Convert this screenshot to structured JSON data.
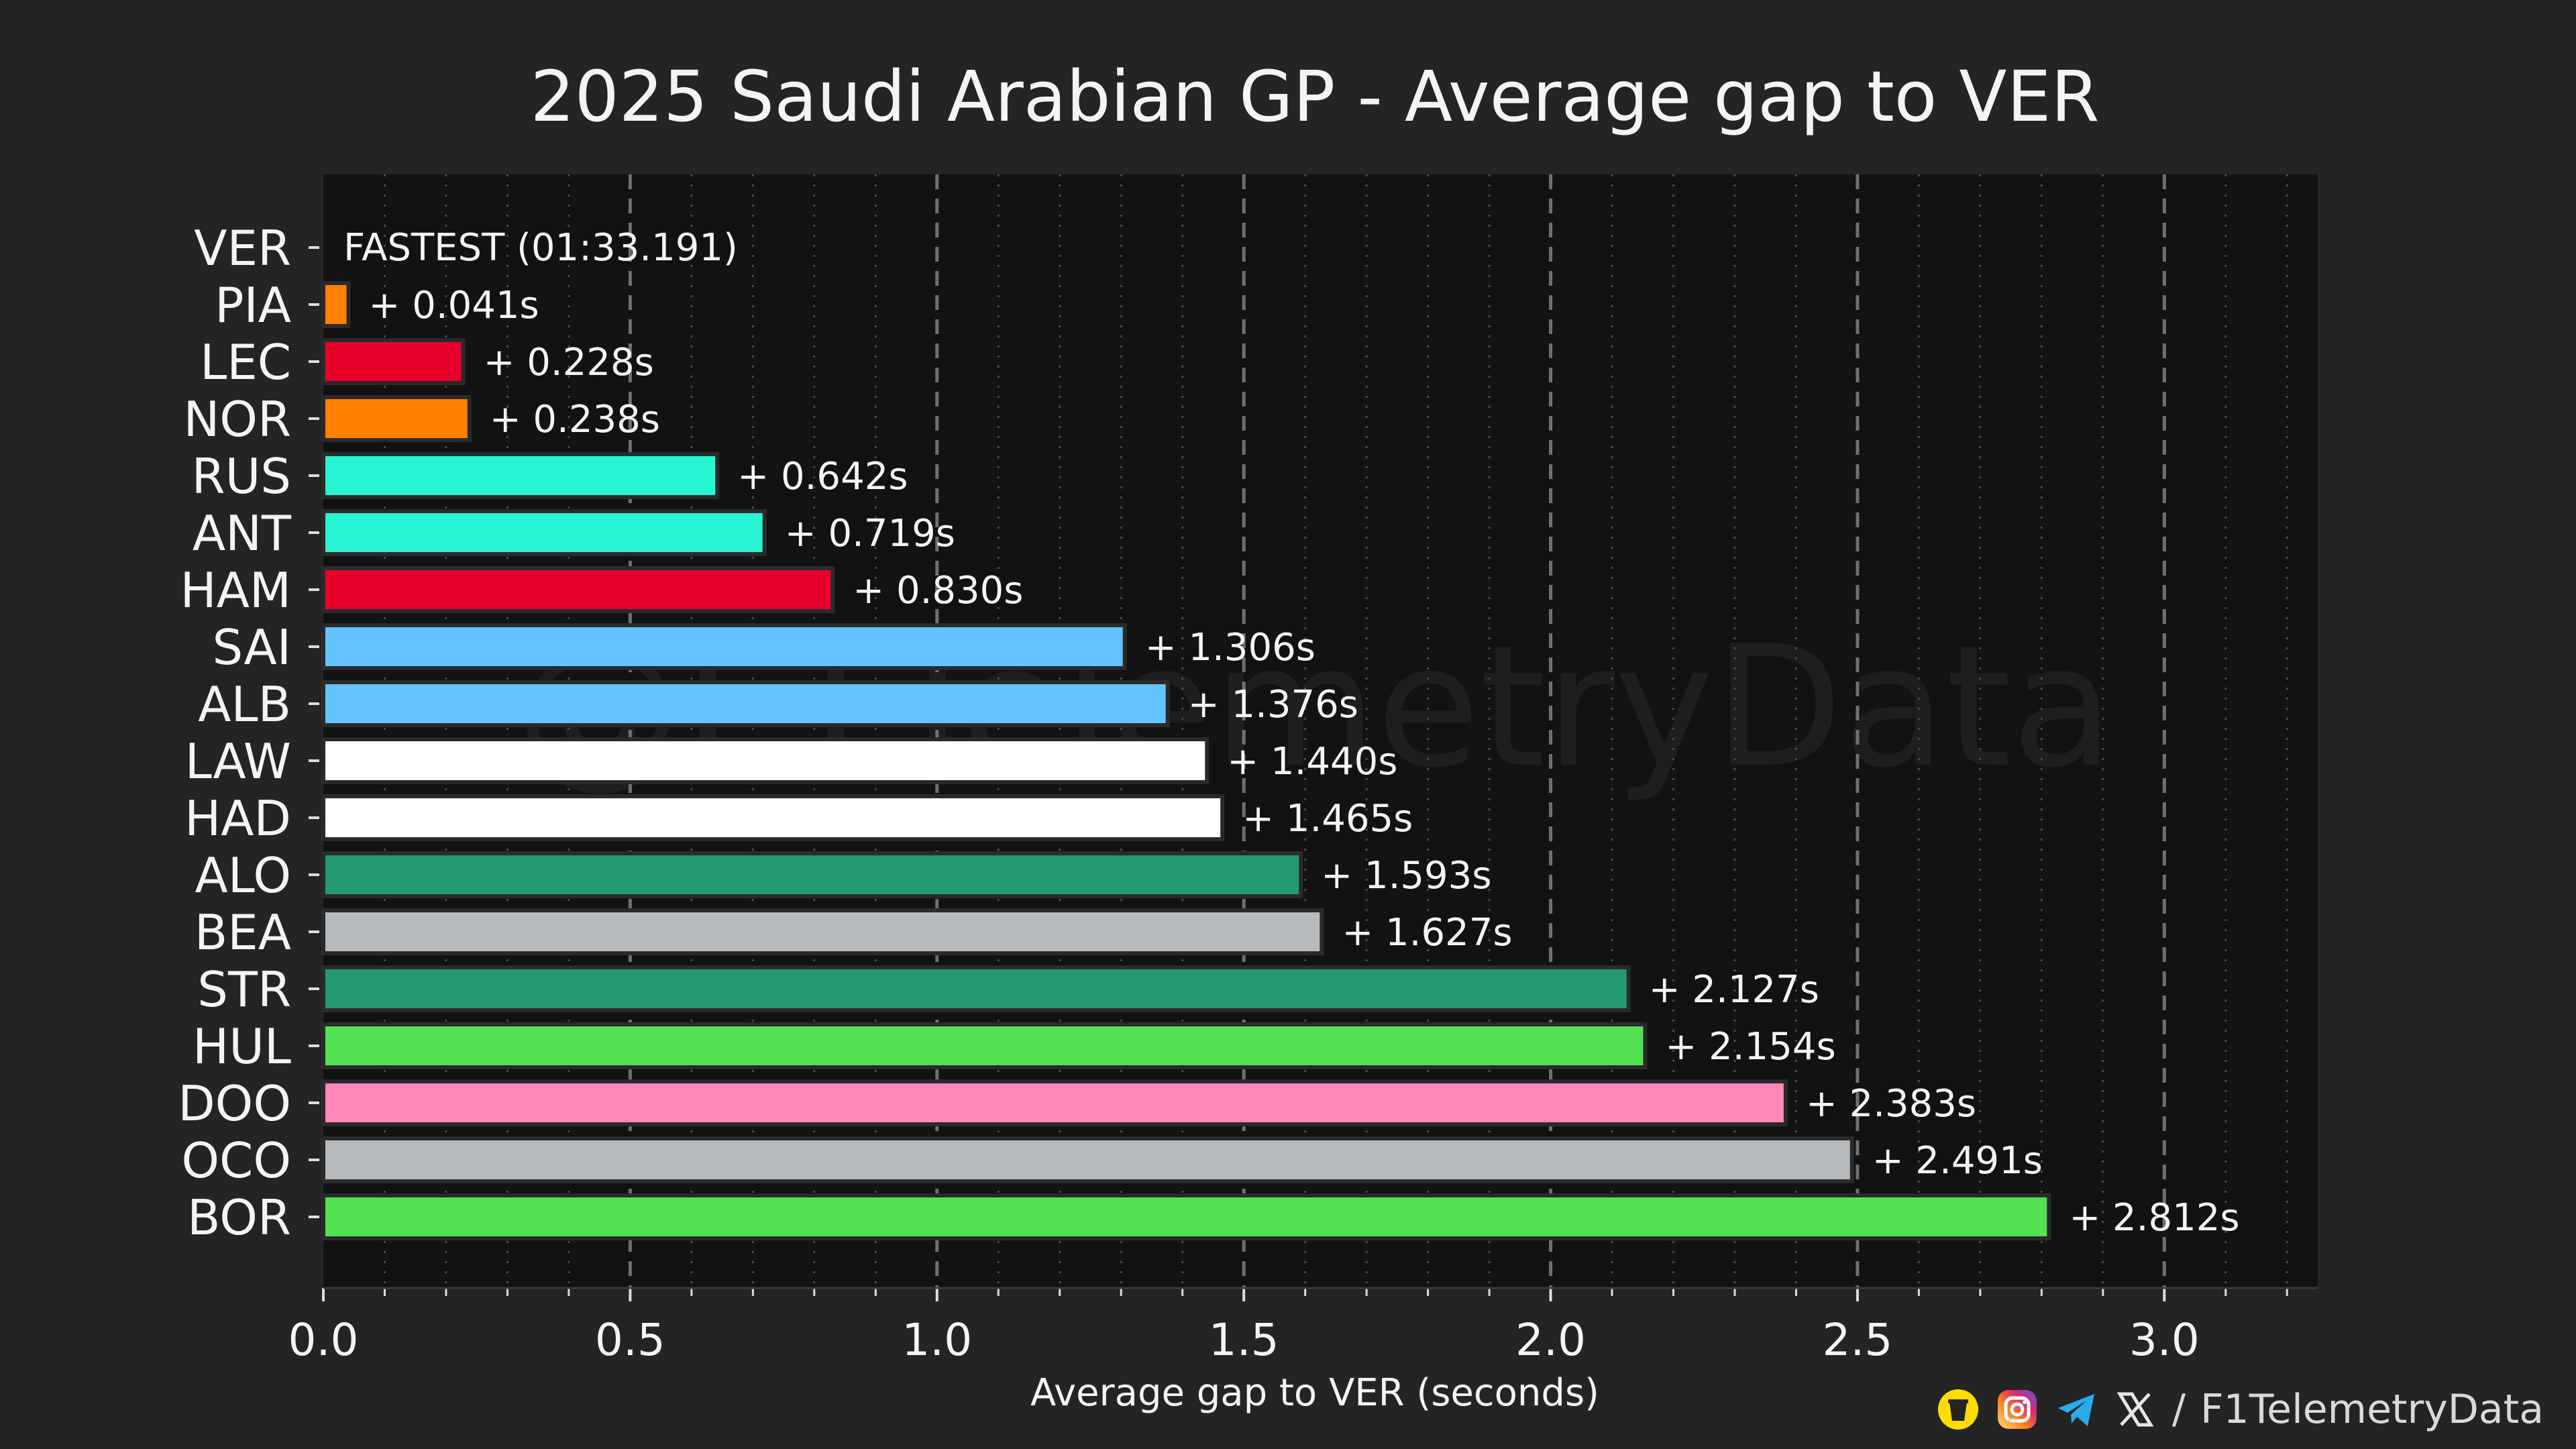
{
  "chart_data": {
    "type": "bar",
    "orientation": "horizontal",
    "title": "2025 Saudi Arabian GP - Average gap to VER",
    "xlabel": "Average gap to VER (seconds)",
    "ylabel": "",
    "xlim": [
      0,
      3.25
    ],
    "xticks": [
      0.0,
      0.5,
      1.0,
      1.5,
      2.0,
      2.5,
      3.0
    ],
    "xtick_labels": [
      "0.0",
      "0.5",
      "1.0",
      "1.5",
      "2.0",
      "2.5",
      "3.0"
    ],
    "grid": "vertical dashed at major ticks, dotted at minor ticks",
    "fastest_annotation": "FASTEST (01:33.191)",
    "categories": [
      "VER",
      "PIA",
      "LEC",
      "NOR",
      "RUS",
      "ANT",
      "HAM",
      "SAI",
      "ALB",
      "LAW",
      "HAD",
      "ALO",
      "BEA",
      "STR",
      "HUL",
      "DOO",
      "OCO",
      "BOR"
    ],
    "values": [
      0.0,
      0.041,
      0.228,
      0.238,
      0.642,
      0.719,
      0.83,
      1.306,
      1.376,
      1.44,
      1.465,
      1.593,
      1.627,
      2.127,
      2.154,
      2.383,
      2.491,
      2.812
    ],
    "value_labels": [
      "",
      "+ 0.041s",
      "+ 0.228s",
      "+ 0.238s",
      "+ 0.642s",
      "+ 0.719s",
      "+ 0.830s",
      "+ 1.306s",
      "+ 1.376s",
      "+ 1.440s",
      "+ 1.465s",
      "+ 1.593s",
      "+ 1.627s",
      "+ 2.127s",
      "+ 2.154s",
      "+ 2.383s",
      "+ 2.491s",
      "+ 2.812s"
    ],
    "colors": [
      "#3671C6",
      "#FF8000",
      "#E8002D",
      "#FF8000",
      "#27F4D2",
      "#27F4D2",
      "#E8002D",
      "#64C4FF",
      "#64C4FF",
      "#FFFFFF",
      "#FFFFFF",
      "#229971",
      "#B6BABD",
      "#229971",
      "#52E252",
      "#FF87BC",
      "#B6BABD",
      "#52E252"
    ]
  },
  "watermark": "@F1TelemetryData",
  "footer": {
    "separator": "/",
    "handle": "F1TelemetryData",
    "icons": [
      "buy-me-a-coffee-icon",
      "instagram-icon",
      "telegram-icon",
      "x-icon"
    ]
  },
  "colors": {
    "background": "#242424",
    "plot_background": "#121212",
    "grid": "#6e6e6e",
    "text": "#f4f4f4"
  }
}
